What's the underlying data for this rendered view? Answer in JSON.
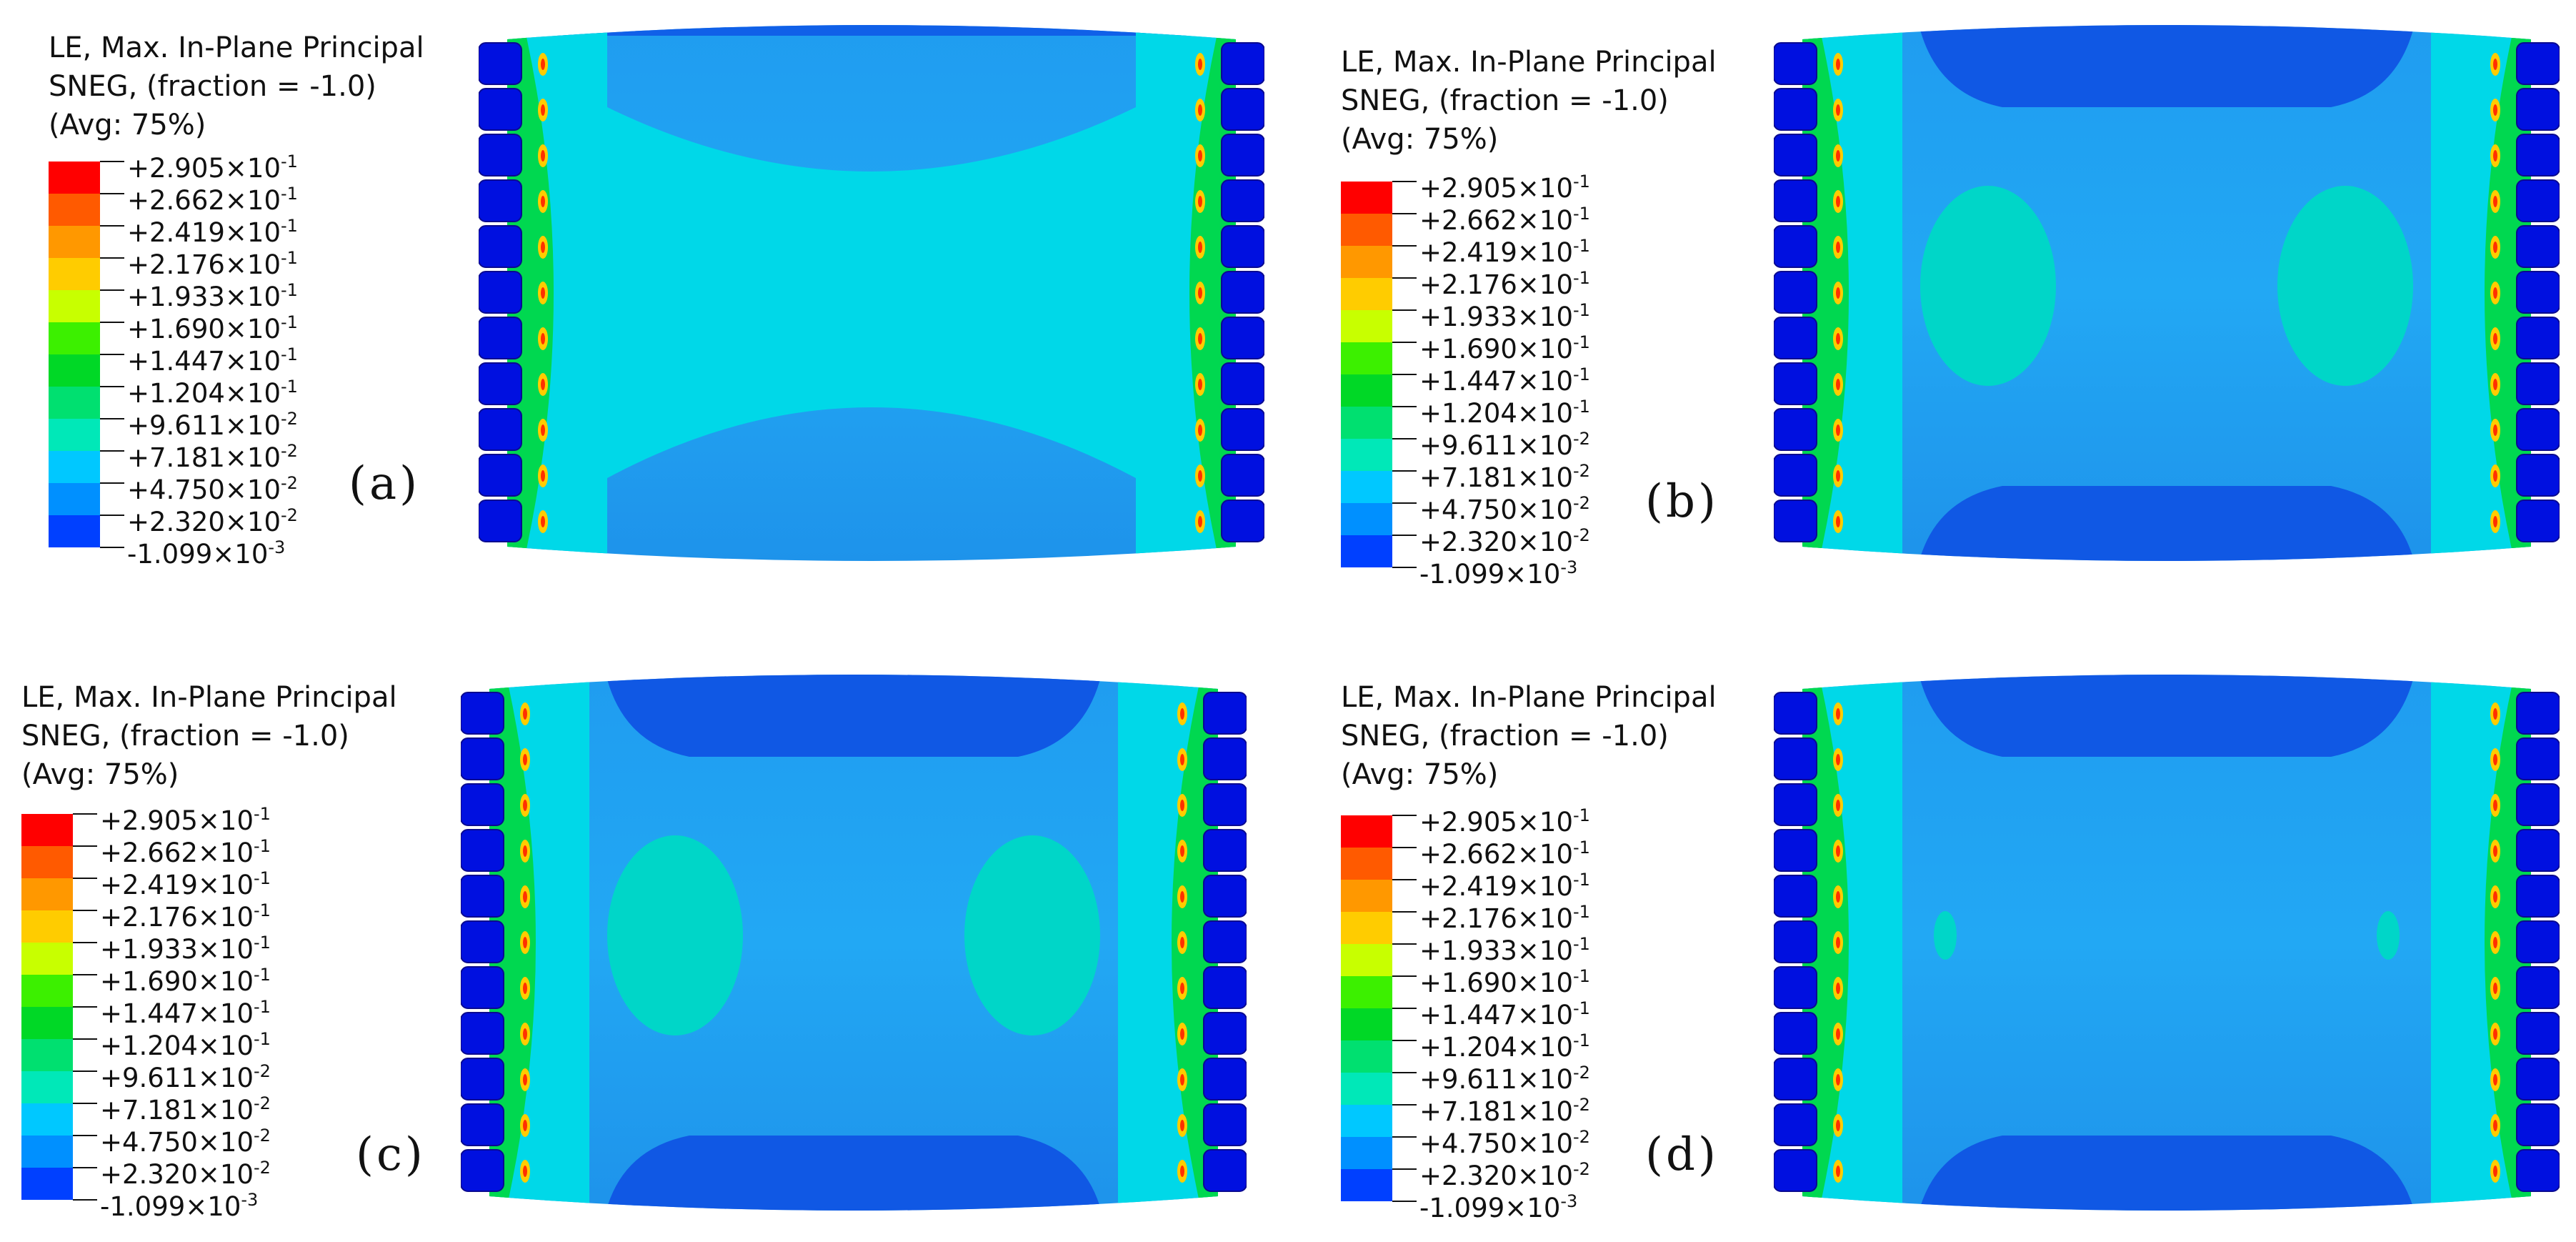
{
  "legend": {
    "line1": "LE, Max. In-Plane Principal",
    "line2": "SNEG, (fraction = -1.0)",
    "line3": "(Avg: 75%)",
    "ticks": [
      {
        "mant": "+2.905",
        "exp": "-1"
      },
      {
        "mant": "+2.662",
        "exp": "-1"
      },
      {
        "mant": "+2.419",
        "exp": "-1"
      },
      {
        "mant": "+2.176",
        "exp": "-1"
      },
      {
        "mant": "+1.933",
        "exp": "-1"
      },
      {
        "mant": "+1.690",
        "exp": "-1"
      },
      {
        "mant": "+1.447",
        "exp": "-1"
      },
      {
        "mant": "+1.204",
        "exp": "-1"
      },
      {
        "mant": "+9.611",
        "exp": "-2"
      },
      {
        "mant": "+7.181",
        "exp": "-2"
      },
      {
        "mant": "+4.750",
        "exp": "-2"
      },
      {
        "mant": "+2.320",
        "exp": "-2"
      },
      {
        "mant": "-1.099",
        "exp": "-3"
      }
    ],
    "times_sign": "×10",
    "colors": [
      "#ff0000",
      "#ff5a00",
      "#ff9800",
      "#ffcc00",
      "#c8ff00",
      "#3cf000",
      "#00d826",
      "#00e070",
      "#00e8b8",
      "#00c8ff",
      "#0090ff",
      "#0040ff"
    ]
  },
  "panels": [
    {
      "id": "a",
      "label": "(a)"
    },
    {
      "id": "b",
      "label": "(b)"
    },
    {
      "id": "c",
      "label": "(c)"
    },
    {
      "id": "d",
      "label": "(d)"
    }
  ]
}
